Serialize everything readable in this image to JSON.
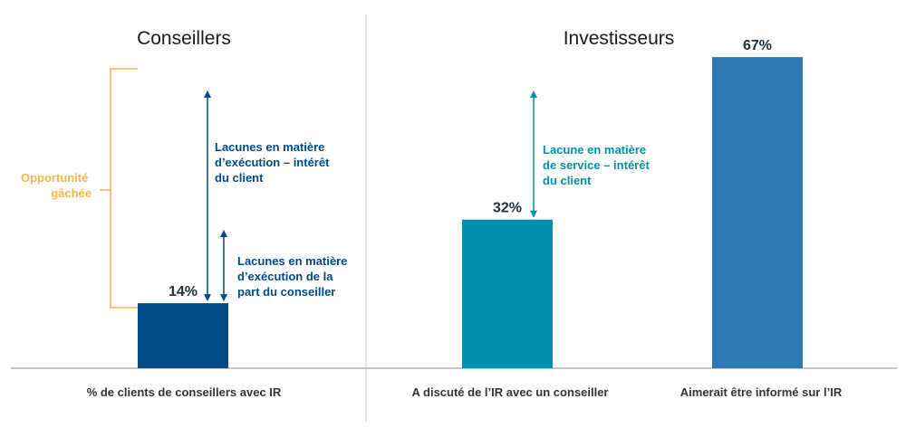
{
  "colors": {
    "navy": "#004a87",
    "teal": "#0090b0",
    "blue": "#2e7ab5",
    "orange": "#f4b74a",
    "divider": "#cccccc",
    "axis": "#b0b0b0"
  },
  "chart_data": [
    {
      "type": "bar",
      "title": "Conseillers",
      "categories": [
        "% de clients de conseillers avec IR"
      ],
      "values": [
        14
      ],
      "value_labels": [
        "14%"
      ],
      "ylim": [
        0,
        75
      ],
      "bar_colors": [
        "#004a87"
      ],
      "annotations": {
        "bracket": "Opportunité gâchée",
        "bracket_lines": [
          "Opportunité",
          "gâchée"
        ],
        "gap_client": "Lacunes en matière d'exécution – intérêt du client",
        "gap_client_lines": [
          "Lacunes en matière",
          "d’exécution – intérêt",
          "du client"
        ],
        "gap_advisor": "Lacunes en matière d'exécution de la part du conseiller",
        "gap_advisor_lines": [
          "Lacunes en matière",
          "d’exécution de la",
          "part du conseiller"
        ]
      }
    },
    {
      "type": "bar",
      "title": "Investisseurs",
      "categories": [
        "A discuté de l’IR avec un conseiller",
        "Aimerait être informé sur l’IR"
      ],
      "values": [
        32,
        67
      ],
      "value_labels": [
        "32%",
        "67%"
      ],
      "ylim": [
        0,
        75
      ],
      "bar_colors": [
        "#0090b0",
        "#2e7ab5"
      ],
      "annotations": {
        "gap_service": "Lacune en matière de service – intérêt du client",
        "gap_service_lines": [
          "Lacune en matière",
          "de service – intérêt",
          "du client"
        ]
      }
    }
  ]
}
